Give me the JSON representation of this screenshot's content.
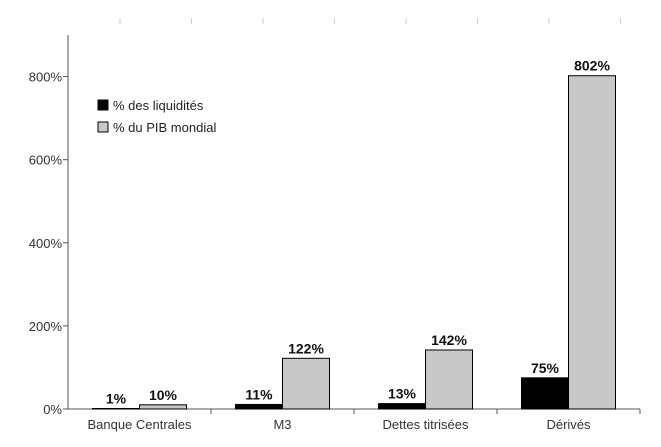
{
  "chart_data": {
    "type": "bar",
    "categories": [
      "Banque Centrales",
      "M3",
      "Dettes titrisées",
      "Dérivés"
    ],
    "series": [
      {
        "name": "% des liquidités",
        "values": [
          1,
          11,
          13,
          75
        ],
        "labels": [
          "1%",
          "11%",
          "13%",
          "75%"
        ],
        "color": "#000000"
      },
      {
        "name": "% du PIB mondial",
        "values": [
          10,
          122,
          142,
          802
        ],
        "labels": [
          "10%",
          "122%",
          "142%",
          "802%"
        ],
        "color": "#c8c8c8"
      }
    ],
    "ylim": [
      0,
      900
    ],
    "yticks": [
      0,
      200,
      400,
      600,
      800
    ],
    "ytick_labels": [
      "0%",
      "200%",
      "400%",
      "600%",
      "800%"
    ],
    "legend_position": "top-left",
    "grid": false
  }
}
